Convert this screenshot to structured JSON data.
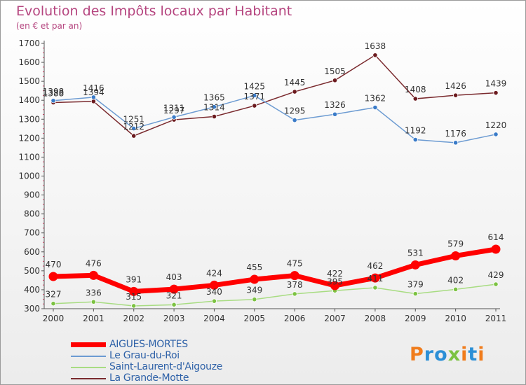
{
  "title": "Evolution des Impôts locaux par Habitant",
  "subtitle": "(en € et par an)",
  "brand": {
    "letters": [
      {
        "ch": "P",
        "color": "#f07c1c"
      },
      {
        "ch": "r",
        "color": "#2b8fd6"
      },
      {
        "ch": "o",
        "color": "#2b8fd6"
      },
      {
        "ch": "x",
        "color": "#7cc242"
      },
      {
        "ch": "i",
        "color": "#f07c1c"
      },
      {
        "ch": "t",
        "color": "#2b8fd6"
      },
      {
        "ch": "i",
        "color": "#f07c1c"
      }
    ]
  },
  "chart_data": {
    "type": "line",
    "title": "Evolution des Impôts locaux par Habitant",
    "subtitle": "(en € et par an)",
    "xlabel": "",
    "ylabel": "",
    "categories": [
      "2000",
      "2001",
      "2002",
      "2003",
      "2004",
      "2005",
      "2006",
      "2007",
      "2008",
      "2009",
      "2010",
      "2011"
    ],
    "ylim": [
      300,
      1700
    ],
    "yticks": [
      300,
      400,
      500,
      600,
      700,
      800,
      900,
      1000,
      1100,
      1200,
      1300,
      1400,
      1500,
      1600,
      1700
    ],
    "grid": false,
    "legend_position": "bottom-left",
    "series": [
      {
        "name": "AIGUES-MORTES",
        "color": "#ff0000",
        "emphasis": true,
        "values": [
          470,
          476,
          391,
          403,
          424,
          455,
          475,
          422,
          462,
          531,
          579,
          614
        ]
      },
      {
        "name": "Le Grau-du-Roi",
        "color": "#6c9bd2",
        "marker": "#3a7bc8",
        "values": [
          1398,
          1416,
          1251,
          1311,
          1365,
          1425,
          1295,
          1326,
          1362,
          1192,
          1176,
          1220
        ]
      },
      {
        "name": "Saint-Laurent-d'Aigouze",
        "color": "#a8dc82",
        "marker": "#7cc242",
        "values": [
          327,
          336,
          315,
          321,
          340,
          349,
          378,
          395,
          411,
          379,
          402,
          429
        ]
      },
      {
        "name": "La Grande-Motte",
        "color": "#7a2a2e",
        "marker": "#6b1a1e",
        "values": [
          1388,
          1394,
          1212,
          1297,
          1314,
          1371,
          1445,
          1505,
          1638,
          1408,
          1426,
          1439
        ]
      }
    ]
  }
}
